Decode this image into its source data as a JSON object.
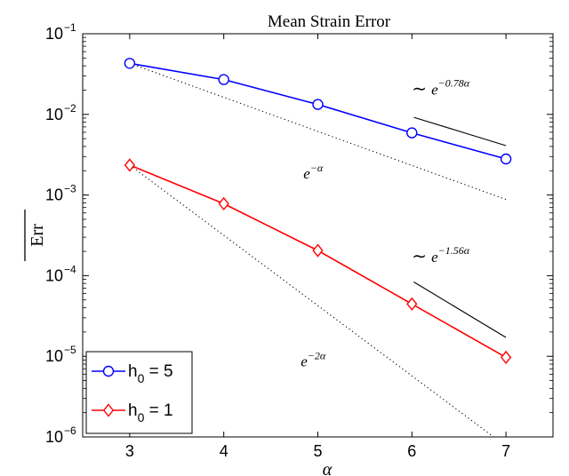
{
  "chart_data": {
    "type": "line",
    "title": "Mean Strain Error",
    "xlabel": "α",
    "ylabel": "Err",
    "xscale": "linear",
    "yscale": "log",
    "xlim": [
      2.5,
      7.5
    ],
    "ylim": [
      1e-06,
      0.1
    ],
    "x_ticks": [
      3,
      4,
      5,
      6,
      7
    ],
    "x_tick_labels": [
      "3",
      "4",
      "5",
      "6",
      "7"
    ],
    "y_ticks": [
      1e-06,
      1e-05,
      0.0001,
      0.001,
      0.01,
      0.1
    ],
    "y_tick_labels": [
      {
        "base": "10",
        "exp": "−6"
      },
      {
        "base": "10",
        "exp": "−5"
      },
      {
        "base": "10",
        "exp": "−4"
      },
      {
        "base": "10",
        "exp": "−3"
      },
      {
        "base": "10",
        "exp": "−2"
      },
      {
        "base": "10",
        "exp": "−1"
      }
    ],
    "grid": false,
    "legend_position": "bottom-left",
    "series": [
      {
        "legend_main": "h",
        "legend_sub": "0",
        "legend_tail": " = 5",
        "color": "#0000ff",
        "marker": "circle",
        "x": [
          3,
          4,
          5,
          6,
          7
        ],
        "y": [
          0.043,
          0.027,
          0.0133,
          0.0059,
          0.0028
        ]
      },
      {
        "legend_main": "h",
        "legend_sub": "0",
        "legend_tail": " = 1",
        "color": "#ff0000",
        "marker": "diamond",
        "x": [
          3,
          4,
          5,
          6,
          7
        ],
        "y": [
          0.00235,
          0.00078,
          0.000205,
          4.45e-05,
          9.7e-06
        ]
      }
    ],
    "reference_lines": [
      {
        "style": "dotted",
        "color": "#000000",
        "x": [
          3,
          7
        ],
        "y": [
          0.043,
          0.00088
        ],
        "label_base": "e",
        "label_exp": "−α",
        "label_at": [
          4.95,
          0.0016
        ]
      },
      {
        "style": "dotted",
        "color": "#000000",
        "x": [
          3,
          6.95
        ],
        "y": [
          0.00235,
          8.5e-07
        ],
        "label_base": "e",
        "label_exp": "−2α",
        "label_at": [
          4.95,
          7.5e-06
        ]
      }
    ],
    "slope_lines": [
      {
        "color": "#000000",
        "x": [
          6.02,
          7.0
        ],
        "y": [
          0.0092,
          0.0041
        ],
        "label_prefix": "∼",
        "label_base": "e",
        "label_exp": "−0.78α",
        "label_at": [
          6.0,
          0.0175
        ]
      },
      {
        "color": "#000000",
        "x": [
          6.02,
          7.0
        ],
        "y": [
          8.35e-05,
          1.71e-05
        ],
        "label_prefix": "∼",
        "label_base": "e",
        "label_exp": "−1.56α",
        "label_at": [
          6.0,
          0.000148
        ]
      }
    ]
  }
}
